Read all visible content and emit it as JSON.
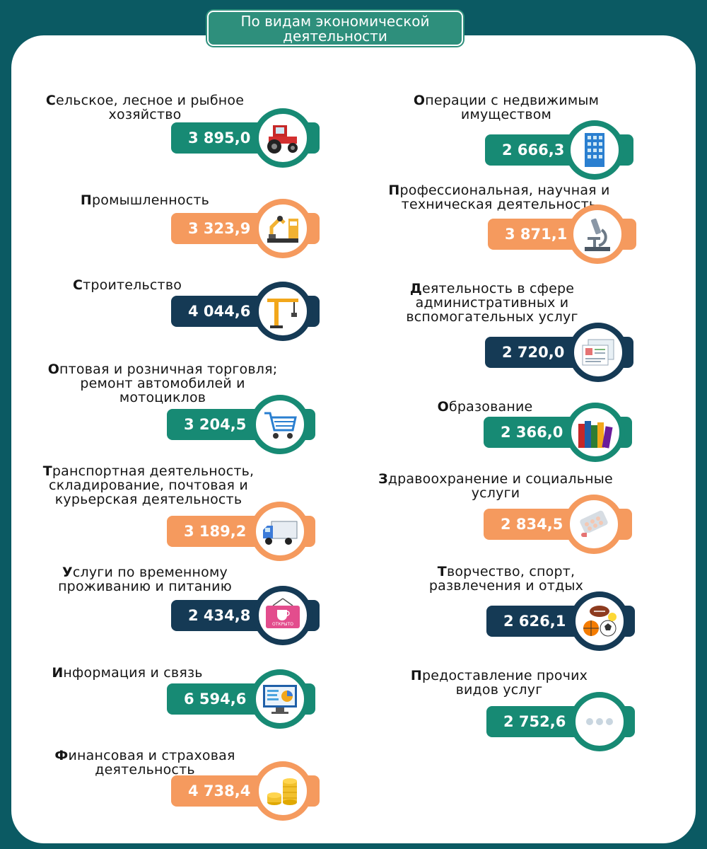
{
  "title": "По видам экономической\nдеятельности",
  "items": [
    {
      "label": "Сельское, лесное и рыбное\nхозяйство",
      "value": "3 895,0",
      "color": "#178a74",
      "icon": "tractor-icon"
    },
    {
      "label": "Промышленность",
      "value": "3 323,9",
      "color": "#f59a5e",
      "icon": "robot-arm-icon"
    },
    {
      "label": "Строительство",
      "value": "4 044,6",
      "color": "#153a55",
      "icon": "crane-icon"
    },
    {
      "label": "Оптовая и розничная торговля;\nремонт автомобилей и\nмотоциклов",
      "value": "3 204,5",
      "color": "#178a74",
      "icon": "shopping-cart-icon"
    },
    {
      "label": "Транспортная деятельность,\nскладирование, почтовая и\nкурьерская деятельность",
      "value": "3 189,2",
      "color": "#f59a5e",
      "icon": "truck-icon"
    },
    {
      "label": "Услуги по временному\nпроживанию и питанию",
      "value": "2 434,8",
      "color": "#153a55",
      "icon": "cafe-sign-icon",
      "sign_text": "ОТКРЫТО"
    },
    {
      "label": "Информация и связь",
      "value": "6 594,6",
      "color": "#178a74",
      "icon": "monitor-chart-icon"
    },
    {
      "label": "Финансовая  и страховая\nдеятельность",
      "value": "4 738,4",
      "color": "#f59a5e",
      "icon": "coins-icon"
    },
    {
      "label": "Операции с недвижимым\nимуществом",
      "value": "2 666,3",
      "color": "#178a74",
      "icon": "building-icon"
    },
    {
      "label": "Профессиональная, научная и\nтехническая деятельность",
      "value": "3 871,1",
      "color": "#f59a5e",
      "icon": "microscope-icon"
    },
    {
      "label": "Деятельность в сфере\nадминистративных и\nвспомогательных услуг",
      "value": "2 720,0",
      "color": "#153a55",
      "icon": "documents-icon"
    },
    {
      "label": "Образование",
      "value": "2 366,0",
      "color": "#178a74",
      "icon": "books-icon"
    },
    {
      "label": "Здравоохранение и социальные\nуслуги",
      "value": "2 834,5",
      "color": "#f59a5e",
      "icon": "pills-icon"
    },
    {
      "label": "Творчество, спорт,\nразвлечения и отдых",
      "value": "2 626,1",
      "color": "#153a55",
      "icon": "sports-balls-icon"
    },
    {
      "label": "Предоставление прочих\nвидов услуг",
      "value": "2 752,6",
      "color": "#178a74",
      "icon": "ellipsis-icon"
    }
  ]
}
